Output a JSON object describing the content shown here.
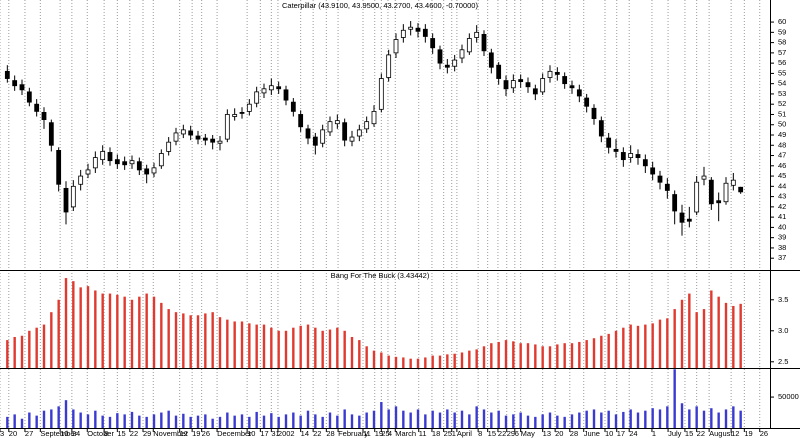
{
  "chart_data": [
    {
      "type": "candlestick",
      "title": "Caterpillar (43.9100, 43.9500, 43.2700, 43.4600, -0.70000)",
      "up_color": "#ffffff",
      "down_color": "#000000",
      "xlim": [
        -1,
        104
      ],
      "ylim": [
        35.85,
        62.15
      ],
      "yticks": [
        37,
        38,
        39,
        40,
        41,
        42,
        43,
        44,
        45,
        46,
        47,
        48,
        49,
        50,
        51,
        52,
        53,
        54,
        55,
        56,
        57,
        58,
        59,
        60
      ],
      "open": [
        55.2,
        54.3,
        53.9,
        53.2,
        52,
        51.2,
        50.2,
        47.5,
        43.8,
        42,
        44.2,
        45.2,
        45.8,
        46.6,
        47.3,
        46.6,
        46.4,
        46.2,
        46.4,
        45.7,
        45.3,
        46,
        47.4,
        48.4,
        49.1,
        49.4,
        48.9,
        48.7,
        48.6,
        48.2,
        48.6,
        50.8,
        51.2,
        51.3,
        52.1,
        53.1,
        53.4,
        53.7,
        53.4,
        52.2,
        51,
        49.6,
        48.8,
        48.2,
        49.3,
        50.1,
        50.2,
        48.4,
        48.9,
        49.6,
        50.1,
        51.5,
        54.6,
        57,
        58.5,
        59.3,
        59.4,
        59.3,
        58.4,
        57.3,
        55.8,
        55.7,
        56.5,
        57.1,
        58.5,
        58.8,
        57,
        55.8,
        54.3,
        53.6,
        54.4,
        54.1,
        53.5,
        53.2,
        54.6,
        55.1,
        54.7,
        53.8,
        53.4,
        52.6,
        51.6,
        50.4,
        48.7,
        47.6,
        47.3,
        46.8,
        47.1,
        46.6,
        45.8,
        45,
        44.2,
        43.2,
        41.4,
        40.8,
        41.5,
        44.7,
        44.6,
        42.6,
        42.5,
        44.1,
        43.91
      ],
      "high": [
        55.8,
        54.8,
        54.4,
        53.6,
        52.5,
        51.7,
        50.5,
        47.8,
        44.5,
        44.6,
        45.6,
        46.2,
        47.4,
        48,
        47.8,
        47.1,
        46.9,
        47,
        46.8,
        46.1,
        46.3,
        47.6,
        48.8,
        49.7,
        50,
        49.9,
        49.4,
        49.1,
        49,
        48.9,
        51.5,
        51.6,
        51.7,
        52.5,
        53.7,
        54,
        54.5,
        54.2,
        53.8,
        52.6,
        51.4,
        50,
        49.2,
        50,
        50.8,
        51,
        50.6,
        49.4,
        50,
        50.8,
        51.9,
        55,
        57.3,
        58.9,
        59.8,
        60.1,
        59.9,
        59.8,
        58.9,
        57.7,
        56.4,
        56.8,
        57.8,
        58.9,
        59.7,
        59.2,
        57.4,
        56.1,
        54.8,
        54.9,
        54.9,
        54.6,
        53.9,
        55,
        55.8,
        55.6,
        55.1,
        54.3,
        53.9,
        53,
        52,
        50.8,
        49.2,
        48.6,
        47.8,
        48,
        47.6,
        47.1,
        46.4,
        45.5,
        44.8,
        43.6,
        42.2,
        42,
        45,
        45.9,
        44.9,
        43.4,
        44.9,
        45.3,
        43.95
      ],
      "low": [
        54.1,
        53.3,
        52.9,
        51.8,
        50.8,
        49.6,
        47.4,
        43.5,
        40.3,
        41.6,
        43.6,
        44.8,
        45.3,
        46.1,
        46,
        45.7,
        45.6,
        45.7,
        45.1,
        44.3,
        44.9,
        45.7,
        47,
        48,
        48.7,
        48.5,
        48.1,
        48,
        47.6,
        47.5,
        48.3,
        50.4,
        50.6,
        50.9,
        51.7,
        52.6,
        52.9,
        53,
        51.9,
        50.8,
        49.3,
        48.1,
        47.1,
        47.8,
        48.9,
        49.6,
        47.9,
        47.9,
        48.4,
        49.2,
        49.8,
        51.2,
        54.2,
        56.5,
        58,
        58.7,
        58.5,
        58,
        56.9,
        55.4,
        55,
        55.2,
        56,
        56.8,
        58,
        56.7,
        55,
        53.9,
        52.8,
        53.1,
        53.6,
        53.1,
        52.4,
        52.9,
        54.1,
        54.3,
        53.5,
        53,
        52.2,
        51.2,
        50,
        48.3,
        47.2,
        46.8,
        45.9,
        46.3,
        46.1,
        45.3,
        44.6,
        43.7,
        42.8,
        40.3,
        39.2,
        40,
        41.2,
        44.1,
        41.7,
        40.6,
        42.2,
        43.6,
        43.27
      ],
      "close": [
        54.5,
        53.8,
        53.4,
        52.2,
        51.3,
        50.5,
        48,
        44.2,
        41.5,
        44,
        45,
        45.6,
        46.8,
        47.4,
        46.5,
        46.2,
        46.1,
        46.5,
        45.6,
        45.2,
        45.8,
        47.2,
        48.3,
        49.2,
        49.5,
        49,
        48.6,
        48.5,
        48.3,
        48.4,
        51,
        51,
        51.1,
        52,
        53.2,
        53.5,
        53.8,
        53.5,
        52.4,
        51.3,
        49.8,
        48.7,
        48,
        49.5,
        50.3,
        50.4,
        48.5,
        48.8,
        49.5,
        50.3,
        51.3,
        54.5,
        56.8,
        58.3,
        59.2,
        59.5,
        59.1,
        58.6,
        57.5,
        56,
        55.6,
        56.3,
        57.3,
        58.4,
        59,
        57.2,
        55.6,
        54.5,
        53.5,
        54.3,
        54.2,
        53.7,
        53,
        54.5,
        55.2,
        54.9,
        54,
        53.6,
        52.8,
        51.8,
        50.6,
        48.9,
        47.8,
        47.4,
        46.6,
        47.2,
        46.8,
        46,
        45.2,
        44.4,
        43.6,
        41.6,
        40.5,
        40.6,
        44.4,
        45,
        42.3,
        42.4,
        44.3,
        44.6,
        43.46
      ]
    },
    {
      "type": "bar",
      "title": "Bang For The Buck (3.43442)",
      "color": "#e0392f",
      "xlim": [
        -1,
        104
      ],
      "ylim": [
        2.4,
        3.98
      ],
      "yticks": [
        2.5,
        {
          "value": 3,
          "label": "3.0"
        },
        3.5
      ],
      "values": [
        2.85,
        2.9,
        2.92,
        3.0,
        3.05,
        3.1,
        3.3,
        3.5,
        3.85,
        3.8,
        3.7,
        3.72,
        3.65,
        3.6,
        3.6,
        3.58,
        3.55,
        3.5,
        3.55,
        3.6,
        3.55,
        3.45,
        3.35,
        3.3,
        3.28,
        3.25,
        3.25,
        3.28,
        3.3,
        3.22,
        3.18,
        3.15,
        3.15,
        3.12,
        3.1,
        3.1,
        3.05,
        3.0,
        3.0,
        3.05,
        3.08,
        3.1,
        3.05,
        3.0,
        3.02,
        3.05,
        3.0,
        2.9,
        2.85,
        2.75,
        2.68,
        2.65,
        2.6,
        2.58,
        2.57,
        2.55,
        2.55,
        2.57,
        2.6,
        2.6,
        2.62,
        2.63,
        2.65,
        2.68,
        2.7,
        2.75,
        2.8,
        2.82,
        2.85,
        2.83,
        2.8,
        2.8,
        2.78,
        2.75,
        2.75,
        2.78,
        2.8,
        2.8,
        2.82,
        2.85,
        2.88,
        2.92,
        2.95,
        3.0,
        3.05,
        3.1,
        3.08,
        3.1,
        3.12,
        3.18,
        3.2,
        3.35,
        3.5,
        3.6,
        3.3,
        3.35,
        3.65,
        3.55,
        3.45,
        3.4,
        3.43442
      ]
    },
    {
      "type": "bar",
      "color": "#3a3ad0",
      "xlim": [
        -1,
        104
      ],
      "ylim": [
        0,
        97000
      ],
      "yticks": [
        50000
      ],
      "values": [
        18000,
        22000,
        15000,
        25000,
        20000,
        28000,
        30000,
        35000,
        45000,
        30000,
        25000,
        22000,
        28000,
        20000,
        18000,
        24000,
        22000,
        26000,
        20000,
        18000,
        22000,
        25000,
        28000,
        20000,
        23000,
        18000,
        20000,
        22000,
        15000,
        18000,
        25000,
        20000,
        22000,
        18000,
        26000,
        20000,
        24000,
        18000,
        22000,
        25000,
        20000,
        28000,
        22000,
        18000,
        25000,
        20000,
        30000,
        22000,
        20000,
        25000,
        28000,
        42000,
        30000,
        35000,
        28000,
        25000,
        30000,
        22000,
        28000,
        25000,
        30000,
        25000,
        28000,
        22000,
        35000,
        30000,
        25000,
        28000,
        20000,
        22000,
        25000,
        20000,
        18000,
        22000,
        25000,
        20000,
        18000,
        22000,
        25000,
        28000,
        30000,
        25000,
        28000,
        22000,
        26000,
        30000,
        25000,
        28000,
        32000,
        30000,
        35000,
        95000,
        40000,
        30000,
        35000,
        28000,
        32000,
        25000,
        30000,
        35000,
        28000
      ],
      "xticks": [
        {
          "value": -1.0,
          "label": "3"
        },
        {
          "value": 0.2,
          "label": "20"
        },
        {
          "value": 2.4,
          "label": "27"
        },
        {
          "value": 4.5,
          "label": "September"
        },
        {
          "value": 7.2,
          "label": "10"
        },
        {
          "value": 8.8,
          "label": "24"
        },
        {
          "value": 10.9,
          "label": "October"
        },
        {
          "value": 13.2,
          "label": "8"
        },
        {
          "value": 15.0,
          "label": "15"
        },
        {
          "value": 16.7,
          "label": "22"
        },
        {
          "value": 18.5,
          "label": "29"
        },
        {
          "value": 19.9,
          "label": "November"
        },
        {
          "value": 23.5,
          "label": "12"
        },
        {
          "value": 25.2,
          "label": "19"
        },
        {
          "value": 26.5,
          "label": "26"
        },
        {
          "value": 28.6,
          "label": "December"
        },
        {
          "value": 32.7,
          "label": "10"
        },
        {
          "value": 34.5,
          "label": "17"
        },
        {
          "value": 36.0,
          "label": "31"
        },
        {
          "value": 36.9,
          "label": "2002"
        },
        {
          "value": 40.0,
          "label": "14"
        },
        {
          "value": 41.7,
          "label": "22"
        },
        {
          "value": 43.5,
          "label": "28"
        },
        {
          "value": 45.1,
          "label": "February"
        },
        {
          "value": 48.5,
          "label": "11"
        },
        {
          "value": 50.1,
          "label": "19"
        },
        {
          "value": 51.0,
          "label": "25"
        },
        {
          "value": 51.9,
          "label": "4"
        },
        {
          "value": 52.9,
          "label": "March"
        },
        {
          "value": 56.1,
          "label": "11"
        },
        {
          "value": 57.9,
          "label": "18"
        },
        {
          "value": 59.5,
          "label": "25"
        },
        {
          "value": 60.6,
          "label": "1"
        },
        {
          "value": 61.3,
          "label": "April"
        },
        {
          "value": 64.2,
          "label": "8"
        },
        {
          "value": 65.5,
          "label": "15"
        },
        {
          "value": 66.9,
          "label": "22"
        },
        {
          "value": 68.1,
          "label": "29"
        },
        {
          "value": 69.2,
          "label": "6"
        },
        {
          "value": 70.0,
          "label": "May"
        },
        {
          "value": 73.0,
          "label": "13"
        },
        {
          "value": 74.7,
          "label": "20"
        },
        {
          "value": 76.7,
          "label": "28"
        },
        {
          "value": 78.6,
          "label": "June"
        },
        {
          "value": 81.5,
          "label": "10"
        },
        {
          "value": 83.1,
          "label": "17"
        },
        {
          "value": 84.8,
          "label": "24"
        },
        {
          "value": 87.9,
          "label": "1"
        },
        {
          "value": 90.1,
          "label": "July"
        },
        {
          "value": 92.4,
          "label": "15"
        },
        {
          "value": 94.0,
          "label": "22"
        },
        {
          "value": 95.7,
          "label": "August"
        },
        {
          "value": 98.7,
          "label": "12"
        },
        {
          "value": 100.5,
          "label": "19"
        },
        {
          "value": 102.6,
          "label": "26"
        }
      ]
    }
  ]
}
